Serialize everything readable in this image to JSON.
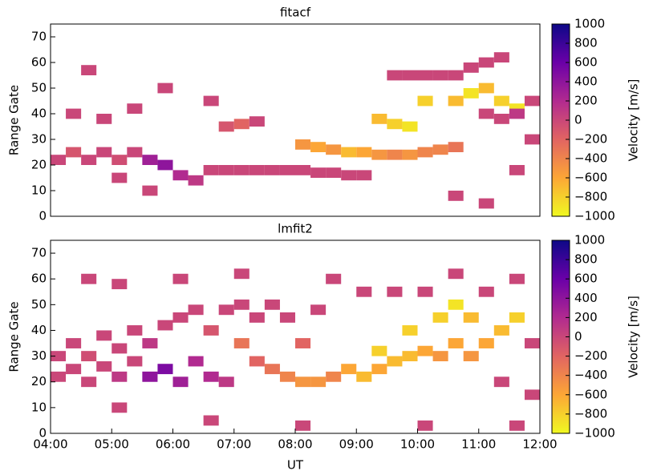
{
  "chart_data": [
    {
      "type": "heatmap",
      "title": "fitacf",
      "ylabel": "Range Gate",
      "colorbar_label": "Velocity [m/s]",
      "colormap": "plasma_r",
      "xlim": [
        4,
        12
      ],
      "ylim": [
        0,
        75
      ],
      "yticks": [
        0,
        10,
        20,
        30,
        40,
        50,
        60,
        70
      ],
      "clim": [
        -1000,
        1000
      ],
      "cticks": [
        {
          "value": -1000,
          "label": "−1000"
        },
        {
          "value": -800,
          "label": "−800"
        },
        {
          "value": -600,
          "label": "−600"
        },
        {
          "value": -400,
          "label": "−400"
        },
        {
          "value": -200,
          "label": "−200"
        },
        0,
        200,
        400,
        600,
        800,
        1000
      ],
      "x": [
        4.0,
        4.25,
        4.5,
        4.75,
        5.0,
        5.25,
        5.5,
        5.75,
        6.0,
        6.25,
        6.5,
        6.75,
        7.0,
        7.25,
        7.5,
        7.75,
        8.0,
        8.25,
        8.5,
        8.75,
        9.0,
        8.0,
        8.25,
        8.5,
        8.75,
        9.0,
        9.25,
        9.5,
        9.75,
        10.0,
        10.25,
        10.5,
        10.0,
        10.5,
        10.75,
        11.0,
        11.25,
        11.5,
        9.25,
        9.5,
        9.75,
        9.5,
        9.75,
        10.0,
        10.25,
        10.5,
        10.75,
        11.0,
        11.25,
        11.0,
        11.25,
        11.5,
        11.75,
        11.75,
        4.25,
        4.75,
        5.25,
        6.75,
        7.0,
        7.25,
        4.5,
        5.75,
        6.5,
        10.5,
        11.0,
        11.5,
        5.0,
        5.5
      ],
      "y": [
        22,
        25,
        22,
        25,
        22,
        25,
        22,
        20,
        16,
        14,
        18,
        18,
        18,
        18,
        18,
        18,
        18,
        17,
        17,
        16,
        16,
        28,
        27,
        26,
        25,
        25,
        24,
        24,
        24,
        25,
        26,
        27,
        45,
        45,
        48,
        50,
        45,
        42,
        38,
        36,
        35,
        55,
        55,
        55,
        55,
        55,
        58,
        60,
        62,
        40,
        38,
        40,
        30,
        45,
        40,
        38,
        42,
        35,
        36,
        37,
        57,
        50,
        45,
        8,
        5,
        18,
        15,
        10
      ],
      "values": [
        0,
        -100,
        0,
        0,
        -50,
        0,
        300,
        400,
        200,
        100,
        0,
        0,
        0,
        0,
        0,
        0,
        0,
        0,
        0,
        0,
        0,
        -500,
        -600,
        -500,
        -700,
        -600,
        -500,
        -400,
        -500,
        -400,
        -400,
        -300,
        -800,
        -700,
        -900,
        -700,
        -800,
        -900,
        -700,
        -800,
        -900,
        0,
        0,
        0,
        0,
        0,
        0,
        0,
        0,
        0,
        0,
        100,
        0,
        0,
        0,
        0,
        0,
        -100,
        -200,
        0,
        0,
        0,
        0,
        0,
        0,
        0,
        0,
        0
      ]
    },
    {
      "type": "heatmap",
      "title": "lmfit2",
      "ylabel": "Range Gate",
      "xlabel": "UT",
      "colorbar_label": "Velocity [m/s]",
      "colormap": "plasma_r",
      "xlim": [
        4,
        12
      ],
      "ylim": [
        0,
        75
      ],
      "yticks": [
        0,
        10,
        20,
        30,
        40,
        50,
        60,
        70
      ],
      "xticks": [
        {
          "value": 4,
          "label": "04:00"
        },
        {
          "value": 5,
          "label": "05:00"
        },
        {
          "value": 6,
          "label": "06:00"
        },
        {
          "value": 7,
          "label": "07:00"
        },
        {
          "value": 8,
          "label": "08:00"
        },
        {
          "value": 9,
          "label": "09:00"
        },
        {
          "value": 10,
          "label": "10:00"
        },
        {
          "value": 11,
          "label": "11:00"
        },
        {
          "value": 12,
          "label": "12:00"
        }
      ],
      "clim": [
        -1000,
        1000
      ],
      "cticks": [
        {
          "value": -1000,
          "label": "−1000"
        },
        {
          "value": -800,
          "label": "−800"
        },
        {
          "value": -600,
          "label": "−600"
        },
        {
          "value": -400,
          "label": "−400"
        },
        {
          "value": -200,
          "label": "−200"
        },
        0,
        200,
        400,
        600,
        800,
        1000
      ],
      "x": [
        4.0,
        4.0,
        4.25,
        4.25,
        4.5,
        4.5,
        4.75,
        4.75,
        5.0,
        5.0,
        5.25,
        5.25,
        5.5,
        5.5,
        5.75,
        5.75,
        6.0,
        6.0,
        6.25,
        6.25,
        6.5,
        6.5,
        6.75,
        6.75,
        7.0,
        7.0,
        7.25,
        7.25,
        7.5,
        7.5,
        7.75,
        7.75,
        8.0,
        8.0,
        8.25,
        8.25,
        8.5,
        8.75,
        9.0,
        9.0,
        9.25,
        9.25,
        9.5,
        9.5,
        9.75,
        9.75,
        10.0,
        10.0,
        10.25,
        10.25,
        10.5,
        10.5,
        10.75,
        10.75,
        11.0,
        11.0,
        11.25,
        11.25,
        11.5,
        11.5,
        11.75,
        11.75,
        4.5,
        5.0,
        6.0,
        7.0,
        8.5,
        10.5,
        5.0,
        6.5,
        8.0,
        10.0,
        11.5
      ],
      "y": [
        30,
        22,
        35,
        25,
        30,
        20,
        38,
        26,
        33,
        22,
        40,
        28,
        35,
        22,
        42,
        25,
        20,
        45,
        28,
        48,
        22,
        40,
        20,
        48,
        35,
        50,
        28,
        45,
        25,
        50,
        22,
        45,
        20,
        35,
        20,
        48,
        22,
        25,
        22,
        55,
        25,
        32,
        28,
        55,
        30,
        40,
        32,
        55,
        30,
        45,
        35,
        50,
        30,
        45,
        35,
        55,
        40,
        20,
        45,
        60,
        35,
        15,
        60,
        58,
        60,
        62,
        60,
        62,
        10,
        5,
        3,
        3,
        3
      ],
      "values": [
        0,
        0,
        0,
        0,
        -50,
        0,
        0,
        0,
        0,
        100,
        0,
        0,
        100,
        400,
        0,
        500,
        300,
        0,
        200,
        0,
        200,
        -100,
        100,
        0,
        -300,
        0,
        -200,
        0,
        -300,
        0,
        -400,
        0,
        -500,
        -200,
        -500,
        0,
        -400,
        -600,
        -700,
        0,
        -600,
        -800,
        -700,
        0,
        -700,
        -800,
        -600,
        0,
        -500,
        -800,
        -600,
        -900,
        -500,
        -700,
        -600,
        0,
        -700,
        0,
        -800,
        0,
        0,
        0,
        0,
        0,
        0,
        0,
        0,
        0,
        0,
        0,
        0,
        0,
        0
      ]
    }
  ]
}
